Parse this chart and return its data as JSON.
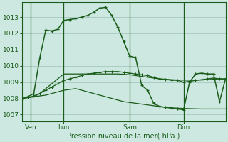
{
  "background_color": "#cce8e0",
  "grid_color": "#aaccc4",
  "line_color": "#1a5c1a",
  "title": "Pression niveau de la mer( hPa )",
  "ylabel_ticks": [
    1007,
    1008,
    1009,
    1010,
    1011,
    1012,
    1013
  ],
  "ylim": [
    1006.6,
    1013.9
  ],
  "xlim": [
    0,
    34
  ],
  "xtick_positions": [
    1.5,
    7,
    18,
    27
  ],
  "xtick_labels": [
    "Ven",
    "Lun",
    "Sam",
    "Dim"
  ],
  "vline_positions": [
    1.5,
    7,
    18,
    27
  ],
  "series1_x": [
    0,
    1,
    2,
    3,
    4,
    5,
    6,
    7,
    8,
    9,
    10,
    11,
    12,
    13,
    14,
    15,
    16,
    17,
    18,
    19,
    20,
    21,
    22,
    23,
    24,
    25,
    26,
    27,
    28,
    29,
    30,
    31,
    32,
    33,
    34
  ],
  "series1_y": [
    1008.0,
    1008.05,
    1008.1,
    1008.15,
    1008.2,
    1008.3,
    1008.4,
    1008.5,
    1008.55,
    1008.6,
    1008.5,
    1008.4,
    1008.3,
    1008.2,
    1008.1,
    1008.0,
    1007.9,
    1007.8,
    1007.75,
    1007.7,
    1007.65,
    1007.6,
    1007.55,
    1007.5,
    1007.45,
    1007.42,
    1007.4,
    1007.38,
    1007.37,
    1007.36,
    1007.35,
    1007.35,
    1007.35,
    1007.35,
    1007.35
  ],
  "series2_x": [
    0,
    1,
    2,
    3,
    4,
    5,
    6,
    7,
    8,
    9,
    10,
    11,
    12,
    13,
    14,
    15,
    16,
    17,
    18,
    19,
    20,
    21,
    22,
    23,
    24,
    25,
    26,
    27,
    28,
    29,
    30,
    31,
    32,
    33,
    34
  ],
  "series2_y": [
    1008.0,
    1008.05,
    1008.1,
    1008.3,
    1008.6,
    1008.9,
    1009.2,
    1009.5,
    1009.5,
    1009.5,
    1009.5,
    1009.5,
    1009.5,
    1009.5,
    1009.5,
    1009.5,
    1009.5,
    1009.48,
    1009.45,
    1009.4,
    1009.35,
    1009.3,
    1009.25,
    1009.2,
    1009.18,
    1009.15,
    1009.13,
    1009.12,
    1009.12,
    1009.12,
    1009.13,
    1009.15,
    1009.18,
    1009.2,
    1009.2
  ],
  "series3_x": [
    0,
    1,
    2,
    3,
    4,
    5,
    6,
    7,
    8,
    9,
    10,
    11,
    12,
    13,
    14,
    15,
    16,
    17,
    18,
    19,
    20,
    21,
    22,
    23,
    24,
    25,
    26,
    27,
    28,
    29,
    30,
    31,
    32,
    33,
    34
  ],
  "series3_y": [
    1008.0,
    1008.05,
    1008.15,
    1008.3,
    1008.5,
    1008.7,
    1008.9,
    1009.1,
    1009.2,
    1009.3,
    1009.4,
    1009.5,
    1009.55,
    1009.6,
    1009.65,
    1009.65,
    1009.65,
    1009.6,
    1009.55,
    1009.5,
    1009.45,
    1009.4,
    1009.3,
    1009.2,
    1009.15,
    1009.12,
    1009.1,
    1009.0,
    1009.05,
    1009.1,
    1009.15,
    1009.2,
    1009.25,
    1009.2,
    1009.2
  ],
  "series4_x": [
    0,
    1,
    2,
    3,
    4,
    5,
    6,
    7,
    8,
    9,
    10,
    11,
    12,
    13,
    14,
    15,
    16,
    17,
    18,
    19,
    20,
    21,
    22,
    23,
    24,
    25,
    26,
    27,
    28,
    29,
    30,
    31,
    32,
    33,
    34
  ],
  "series4_y": [
    1008.0,
    1008.1,
    1008.3,
    1010.5,
    1012.2,
    1012.15,
    1012.25,
    1012.8,
    1012.85,
    1012.9,
    1013.0,
    1013.1,
    1013.3,
    1013.55,
    1013.6,
    1013.1,
    1012.4,
    1011.5,
    1010.6,
    1010.5,
    1008.8,
    1008.5,
    1007.7,
    1007.5,
    1007.45,
    1007.4,
    1007.35,
    1007.3,
    1009.0,
    1009.5,
    1009.55,
    1009.5,
    1009.5,
    1007.8,
    1009.2
  ]
}
